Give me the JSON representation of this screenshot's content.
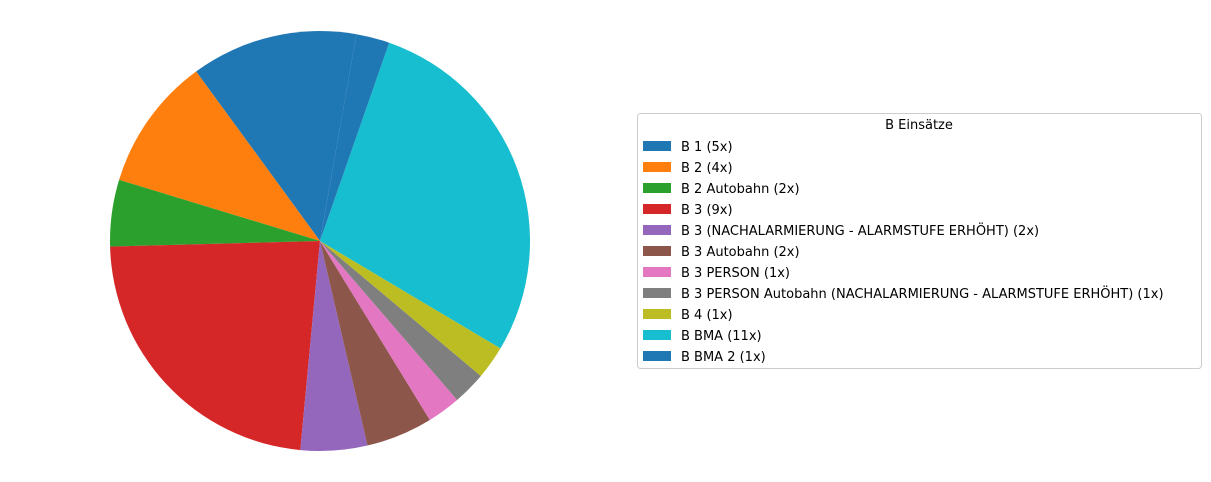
{
  "chart_data": {
    "type": "pie",
    "legend": {
      "title": "B Einsätze",
      "placement": "right"
    },
    "slices": [
      {
        "label": "B 1 (5x)",
        "value": 5,
        "color": "#1f77b4"
      },
      {
        "label": "B 2 (4x)",
        "value": 4,
        "color": "#ff7f0e"
      },
      {
        "label": "B 2 Autobahn (2x)",
        "value": 2,
        "color": "#2ca02c"
      },
      {
        "label": "B 3 (9x)",
        "value": 9,
        "color": "#d62728"
      },
      {
        "label": "B 3 (NACHALARMIERUNG - ALARMSTUFE ERHÖHT) (2x)",
        "value": 2,
        "color": "#9467bd"
      },
      {
        "label": "B 3 Autobahn (2x)",
        "value": 2,
        "color": "#8c564b"
      },
      {
        "label": "B 3 PERSON (1x)",
        "value": 1,
        "color": "#e377c2"
      },
      {
        "label": "B 3 PERSON Autobahn (NACHALARMIERUNG - ALARMSTUFE ERHÖHT) (1x)",
        "value": 1,
        "color": "#7f7f7f"
      },
      {
        "label": "B 4 (1x)",
        "value": 1,
        "color": "#bcbd22"
      },
      {
        "label": "B BMA (11x)",
        "value": 11,
        "color": "#17becf"
      },
      {
        "label": "B BMA 2 (1x)",
        "value": 1,
        "color": "#1f77b4"
      }
    ]
  }
}
